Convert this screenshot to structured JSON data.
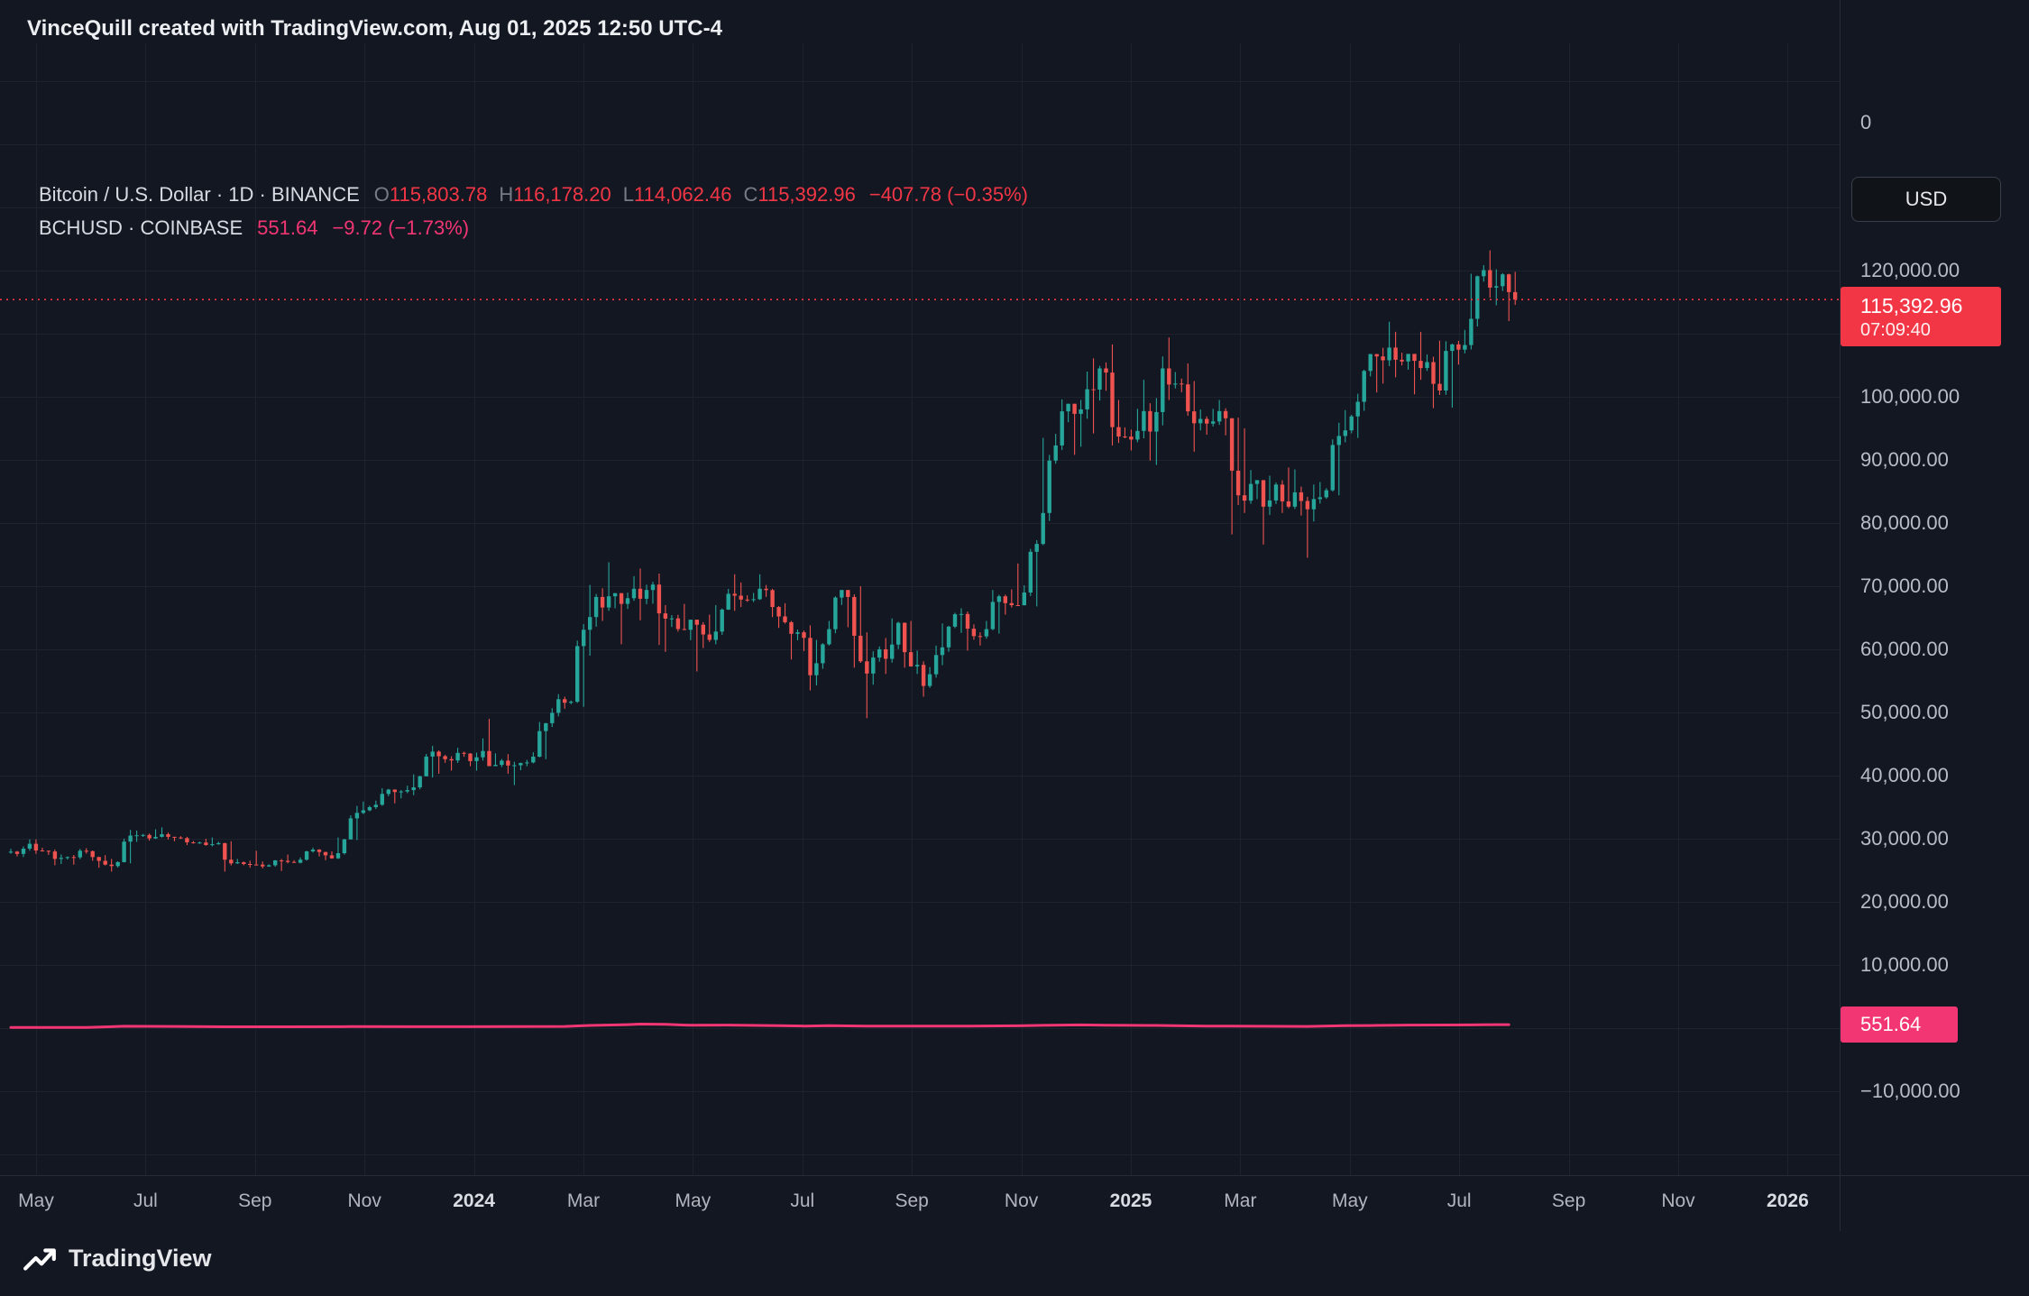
{
  "colors": {
    "background": "#131722",
    "grid": "#1e222d",
    "border": "#262b37",
    "text_primary": "#d8dbe2",
    "text_secondary": "#b8bcc6",
    "text_muted": "#787b86",
    "up": "#26a69a",
    "down": "#ef5350",
    "btc_red": "#f23645",
    "bch_pink": "#f23674"
  },
  "header": {
    "title": "VinceQuill created with TradingView.com, Aug 01, 2025 12:50 UTC-4"
  },
  "legend": {
    "btc": {
      "symbol": "Bitcoin / U.S. Dollar · 1D · BINANCE",
      "open_label": "O",
      "open": "115,803.78",
      "high_label": "H",
      "high": "116,178.20",
      "low_label": "L",
      "low": "114,062.46",
      "close_label": "C",
      "close": "115,392.96",
      "change": "−407.78 (−0.35%)"
    },
    "bch": {
      "symbol": "BCHUSD · COINBASE",
      "value": "551.64",
      "change": "−9.72 (−1.73%)"
    }
  },
  "price_axis": {
    "top_label": "0",
    "currency_button": "USD",
    "labels": [
      {
        "text": "120,000.00",
        "price": 120000
      },
      {
        "text": "100,000.00",
        "price": 100000
      },
      {
        "text": "90,000.00",
        "price": 90000
      },
      {
        "text": "80,000.00",
        "price": 80000
      },
      {
        "text": "70,000.00",
        "price": 70000
      },
      {
        "text": "60,000.00",
        "price": 60000
      },
      {
        "text": "50,000.00",
        "price": 50000
      },
      {
        "text": "40,000.00",
        "price": 40000
      },
      {
        "text": "30,000.00",
        "price": 30000
      },
      {
        "text": "20,000.00",
        "price": 20000
      },
      {
        "text": "10,000.00",
        "price": 10000
      },
      {
        "text": "−10,000.00",
        "price": -10000
      }
    ],
    "last_price_badge": {
      "price": "115,392.96",
      "countdown": "07:09:40"
    },
    "bch_badge": {
      "price": "551.64"
    }
  },
  "time_axis": {
    "labels": [
      {
        "text": "May",
        "m": 0,
        "bold": false
      },
      {
        "text": "Jul",
        "m": 2,
        "bold": false
      },
      {
        "text": "Sep",
        "m": 4,
        "bold": false
      },
      {
        "text": "Nov",
        "m": 6,
        "bold": false
      },
      {
        "text": "2024",
        "m": 8,
        "bold": true
      },
      {
        "text": "Mar",
        "m": 10,
        "bold": false
      },
      {
        "text": "May",
        "m": 12,
        "bold": false
      },
      {
        "text": "Jul",
        "m": 14,
        "bold": false
      },
      {
        "text": "Sep",
        "m": 16,
        "bold": false
      },
      {
        "text": "Nov",
        "m": 18,
        "bold": false
      },
      {
        "text": "2025",
        "m": 20,
        "bold": true
      },
      {
        "text": "Mar",
        "m": 22,
        "bold": false
      },
      {
        "text": "May",
        "m": 24,
        "bold": false
      },
      {
        "text": "Jul",
        "m": 26,
        "bold": false
      },
      {
        "text": "Sep",
        "m": 28,
        "bold": false
      },
      {
        "text": "Nov",
        "m": 30,
        "bold": false
      },
      {
        "text": "2026",
        "m": 32,
        "bold": true
      }
    ]
  },
  "footer": {
    "brand": "TradingView"
  },
  "chart_data": {
    "type": "candlestick",
    "title": "Bitcoin / U.S. Dollar, 1D, BINANCE",
    "x_range": [
      "2023-04-17",
      "2025-08-01"
    ],
    "sampling": "weekly OHLC approximation of the daily series, values in thousands of USD",
    "ylim_visible": [
      -23000,
      156000
    ],
    "grid": true,
    "legend_position": "top-left",
    "last_price": 115392.96,
    "last_ohlc": {
      "open": 115803.78,
      "high": 116178.2,
      "low": 114062.46,
      "close": 115392.96,
      "change": -407.78,
      "change_pct": -0.35
    },
    "candles_ohlc_k": [
      [
        27.8,
        28.4,
        27.2,
        27.6
      ],
      [
        27.6,
        29.9,
        27.1,
        29.2
      ],
      [
        29.2,
        29.9,
        27.6,
        28.1
      ],
      [
        28.1,
        28.3,
        25.8,
        26.8
      ],
      [
        26.8,
        27.5,
        26.0,
        27.1
      ],
      [
        27.1,
        28.4,
        25.9,
        28.1
      ],
      [
        28.1,
        28.5,
        26.5,
        27.1
      ],
      [
        27.1,
        27.4,
        25.4,
        25.9
      ],
      [
        25.9,
        26.8,
        24.8,
        26.3
      ],
      [
        26.3,
        31.4,
        26.1,
        30.5
      ],
      [
        30.5,
        31.3,
        29.5,
        30.6
      ],
      [
        30.6,
        31.5,
        29.7,
        30.3
      ],
      [
        30.3,
        31.8,
        29.9,
        30.3
      ],
      [
        30.3,
        30.4,
        29.6,
        30.1
      ],
      [
        30.1,
        30.3,
        29.0,
        29.3
      ],
      [
        29.3,
        30.0,
        28.9,
        29.0
      ],
      [
        29.0,
        30.2,
        28.8,
        29.3
      ],
      [
        29.3,
        29.6,
        24.8,
        26.1
      ],
      [
        26.1,
        26.8,
        25.8,
        26.0
      ],
      [
        26.0,
        28.1,
        25.4,
        25.9
      ],
      [
        25.9,
        26.4,
        25.3,
        25.8
      ],
      [
        25.8,
        26.8,
        24.9,
        26.5
      ],
      [
        26.5,
        27.5,
        26.1,
        26.2
      ],
      [
        26.2,
        28.1,
        26.1,
        28.0
      ],
      [
        28.0,
        28.6,
        27.2,
        27.9
      ],
      [
        27.9,
        28.0,
        26.6,
        26.9
      ],
      [
        26.9,
        30.2,
        26.8,
        29.9
      ],
      [
        29.9,
        35.2,
        29.8,
        34.1
      ],
      [
        34.1,
        35.9,
        33.9,
        35.0
      ],
      [
        35.0,
        38.0,
        34.7,
        37.1
      ],
      [
        37.1,
        37.9,
        35.6,
        37.4
      ],
      [
        37.4,
        38.4,
        36.4,
        37.7
      ],
      [
        37.7,
        40.2,
        36.9,
        39.9
      ],
      [
        39.9,
        44.7,
        39.7,
        43.8
      ],
      [
        43.8,
        44.0,
        40.3,
        42.6
      ],
      [
        42.6,
        44.4,
        40.8,
        43.6
      ],
      [
        43.6,
        43.8,
        41.5,
        42.3
      ],
      [
        42.3,
        45.9,
        40.8,
        43.9
      ],
      [
        43.9,
        49.0,
        41.5,
        41.7
      ],
      [
        41.7,
        43.4,
        40.3,
        41.6
      ],
      [
        41.6,
        42.2,
        38.5,
        42.0
      ],
      [
        42.0,
        43.7,
        41.5,
        43.0
      ],
      [
        43.0,
        48.5,
        42.6,
        48.3
      ],
      [
        48.3,
        52.9,
        47.7,
        52.1
      ],
      [
        52.1,
        52.5,
        50.6,
        51.7
      ],
      [
        51.7,
        64.0,
        50.9,
        63.1
      ],
      [
        63.1,
        70.2,
        59.0,
        68.3
      ],
      [
        68.3,
        73.8,
        64.5,
        68.4
      ],
      [
        68.4,
        68.9,
        60.8,
        67.2
      ],
      [
        67.2,
        71.6,
        66.4,
        69.6
      ],
      [
        69.6,
        72.8,
        64.6,
        69.4
      ],
      [
        69.4,
        72.0,
        60.7,
        65.7
      ],
      [
        65.7,
        67.0,
        59.6,
        64.9
      ],
      [
        64.9,
        67.2,
        62.8,
        63.1
      ],
      [
        63.1,
        64.7,
        56.5,
        63.9
      ],
      [
        63.9,
        65.5,
        60.2,
        61.5
      ],
      [
        61.5,
        67.0,
        60.8,
        66.3
      ],
      [
        66.3,
        71.9,
        66.1,
        68.5
      ],
      [
        68.5,
        70.6,
        66.7,
        67.8
      ],
      [
        67.8,
        71.9,
        67.5,
        69.6
      ],
      [
        69.6,
        70.2,
        65.1,
        66.7
      ],
      [
        66.7,
        67.3,
        63.4,
        64.3
      ],
      [
        64.3,
        64.5,
        58.4,
        62.7
      ],
      [
        62.7,
        63.8,
        53.5,
        55.9
      ],
      [
        55.9,
        61.5,
        54.3,
        60.8
      ],
      [
        60.8,
        68.4,
        60.6,
        68.2
      ],
      [
        68.2,
        69.4,
        63.5,
        68.3
      ],
      [
        68.3,
        70.0,
        57.1,
        58.1
      ],
      [
        58.1,
        62.7,
        49.1,
        58.7
      ],
      [
        58.7,
        61.8,
        56.1,
        58.5
      ],
      [
        58.5,
        64.9,
        57.9,
        64.2
      ],
      [
        64.2,
        64.5,
        57.1,
        57.3
      ],
      [
        57.3,
        59.8,
        52.5,
        54.2
      ],
      [
        54.2,
        60.6,
        53.9,
        59.1
      ],
      [
        59.1,
        64.1,
        57.5,
        63.6
      ],
      [
        63.6,
        66.5,
        62.6,
        65.6
      ],
      [
        65.6,
        66.0,
        59.8,
        62.1
      ],
      [
        62.1,
        64.5,
        60.6,
        63.2
      ],
      [
        63.2,
        69.4,
        62.5,
        68.4
      ],
      [
        68.4,
        69.5,
        65.5,
        67.0
      ],
      [
        67.0,
        73.6,
        66.9,
        69.0
      ],
      [
        69.0,
        77.3,
        66.8,
        76.7
      ],
      [
        76.7,
        93.5,
        76.5,
        89.9
      ],
      [
        89.9,
        99.6,
        89.4,
        97.7
      ],
      [
        97.7,
        98.9,
        90.8,
        97.3
      ],
      [
        97.3,
        104.0,
        92.1,
        101.2
      ],
      [
        101.2,
        106.1,
        94.2,
        104.5
      ],
      [
        104.5,
        108.3,
        92.3,
        95.2
      ],
      [
        95.2,
        99.5,
        92.7,
        93.7
      ],
      [
        93.7,
        98.1,
        91.5,
        94.6
      ],
      [
        94.6,
        102.7,
        89.9,
        94.5
      ],
      [
        94.5,
        106.4,
        89.2,
        104.5
      ],
      [
        104.5,
        109.4,
        99.5,
        102.1
      ],
      [
        102.1,
        105.3,
        97.0,
        97.7
      ],
      [
        97.7,
        102.5,
        91.3,
        96.5
      ],
      [
        96.5,
        98.1,
        94.0,
        96.1
      ],
      [
        96.1,
        99.5,
        93.9,
        96.6
      ],
      [
        96.6,
        96.7,
        78.2,
        84.4
      ],
      [
        84.4,
        95.0,
        81.6,
        86.2
      ],
      [
        86.2,
        86.8,
        76.6,
        82.6
      ],
      [
        82.6,
        87.5,
        81.3,
        86.1
      ],
      [
        86.1,
        88.8,
        81.6,
        82.6
      ],
      [
        82.6,
        88.5,
        81.2,
        83.5
      ],
      [
        83.5,
        86.1,
        74.5,
        83.8
      ],
      [
        83.8,
        86.5,
        83.1,
        85.2
      ],
      [
        85.2,
        95.9,
        84.4,
        93.8
      ],
      [
        93.8,
        97.9,
        92.8,
        96.9
      ],
      [
        96.9,
        104.3,
        93.5,
        104.1
      ],
      [
        104.1,
        106.8,
        100.7,
        106.4
      ],
      [
        106.4,
        111.9,
        102.1,
        107.8
      ],
      [
        107.8,
        110.3,
        103.1,
        105.6
      ],
      [
        105.6,
        106.8,
        100.4,
        105.7
      ],
      [
        105.7,
        110.3,
        102.7,
        105.5
      ],
      [
        105.5,
        108.9,
        98.2,
        101.0
      ],
      [
        101.0,
        108.8,
        98.3,
        108.3
      ],
      [
        108.3,
        110.6,
        105.1,
        108.2
      ],
      [
        108.2,
        119.5,
        107.5,
        119.1
      ],
      [
        119.1,
        123.2,
        115.7,
        117.3
      ],
      [
        117.3,
        120.2,
        114.5,
        119.4
      ],
      [
        119.4,
        119.8,
        112.0,
        115.4
      ]
    ],
    "bch_line": {
      "name": "BCHUSD · COINBASE",
      "last": 551.64,
      "change": -9.72,
      "change_pct": -1.73,
      "points_week_price": [
        [
          0,
          115
        ],
        [
          6,
          110
        ],
        [
          9,
          300
        ],
        [
          13,
          270
        ],
        [
          17,
          210
        ],
        [
          22,
          210
        ],
        [
          27,
          240
        ],
        [
          32,
          230
        ],
        [
          36,
          230
        ],
        [
          40,
          260
        ],
        [
          44,
          265
        ],
        [
          46,
          430
        ],
        [
          49,
          560
        ],
        [
          50,
          640
        ],
        [
          52,
          620
        ],
        [
          54,
          460
        ],
        [
          57,
          480
        ],
        [
          61,
          380
        ],
        [
          63,
          330
        ],
        [
          65,
          380
        ],
        [
          68,
          330
        ],
        [
          72,
          310
        ],
        [
          76,
          330
        ],
        [
          80,
          370
        ],
        [
          82,
          440
        ],
        [
          85,
          520
        ],
        [
          87,
          460
        ],
        [
          89,
          440
        ],
        [
          91,
          430
        ],
        [
          95,
          330
        ],
        [
          97,
          310
        ],
        [
          99,
          300
        ],
        [
          103,
          270
        ],
        [
          106,
          390
        ],
        [
          108,
          420
        ],
        [
          111,
          480
        ],
        [
          114,
          500
        ],
        [
          116,
          520
        ],
        [
          118,
          560
        ],
        [
          119,
          551.64
        ]
      ]
    }
  }
}
